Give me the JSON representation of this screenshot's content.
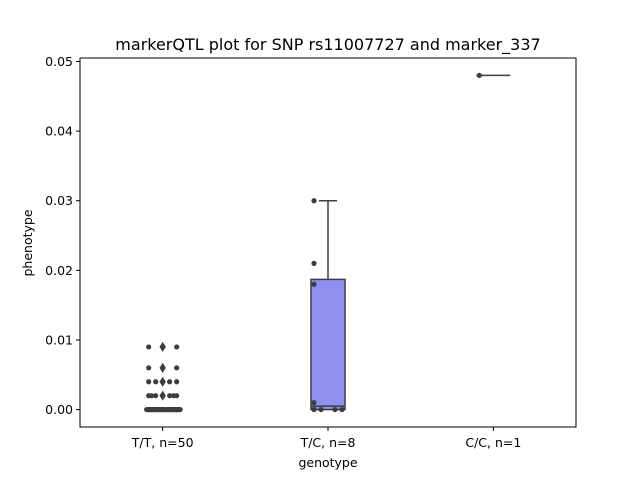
{
  "chart_data": {
    "type": "box",
    "title": "markerQTL plot for SNP rs11007727 and marker_337",
    "xlabel": "genotype",
    "ylabel": "phenotype",
    "ylim": [
      -0.0025,
      0.0505
    ],
    "yticks": [
      0.0,
      0.01,
      0.02,
      0.03,
      0.04,
      0.05
    ],
    "ytick_labels": [
      "0.00",
      "0.01",
      "0.02",
      "0.03",
      "0.04",
      "0.05"
    ],
    "categories": [
      "T/T, n=50",
      "T/C, n=8",
      "C/C, n=1"
    ],
    "box_color": "#9090f0",
    "point_color": "#3d3d3d",
    "boxes": [
      {
        "category": "T/T, n=50",
        "q1": 0.0,
        "median": 0.0,
        "q3": 0.0,
        "whisker_low": 0.0,
        "whisker_high": 0.0,
        "outliers": [
          0.002,
          0.004,
          0.006,
          0.009
        ]
      },
      {
        "category": "T/C, n=8",
        "q1": 0.0,
        "median": 0.0005,
        "q3": 0.0187,
        "whisker_low": 0.0,
        "whisker_high": 0.03,
        "outliers": []
      },
      {
        "category": "C/C, n=1",
        "q1": 0.048,
        "median": 0.048,
        "q3": 0.048,
        "whisker_low": 0.048,
        "whisker_high": 0.048,
        "outliers": []
      }
    ],
    "points": [
      {
        "category": 0,
        "values": [
          0,
          0,
          0,
          0,
          0,
          0,
          0,
          0,
          0,
          0,
          0,
          0,
          0,
          0,
          0,
          0,
          0,
          0,
          0,
          0,
          0,
          0,
          0,
          0,
          0,
          0,
          0,
          0,
          0,
          0,
          0,
          0,
          0,
          0,
          0,
          0,
          0.002,
          0.002,
          0.002,
          0.002,
          0.002,
          0.002,
          0.004,
          0.004,
          0.004,
          0.004,
          0.006,
          0.006,
          0.009,
          0.009
        ]
      },
      {
        "category": 1,
        "values": [
          0,
          0,
          0,
          0.001,
          0.018,
          0.021,
          0.03,
          0
        ]
      },
      {
        "category": 2,
        "values": [
          0.048
        ]
      }
    ],
    "grid": false,
    "legend": "none"
  }
}
